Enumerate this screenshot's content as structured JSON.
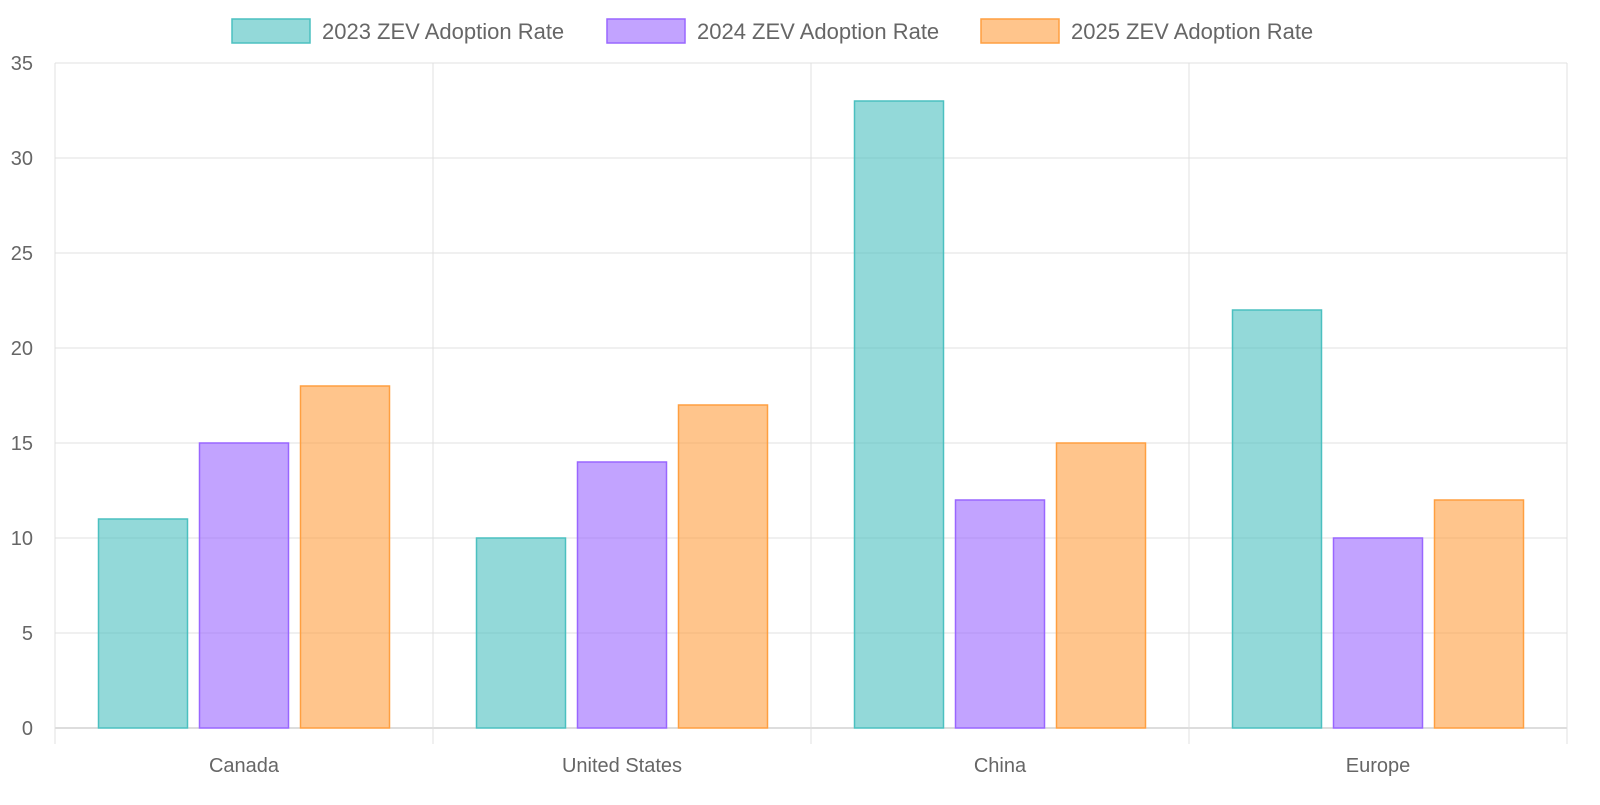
{
  "chart_data": {
    "type": "bar",
    "title": "",
    "xlabel": "",
    "ylabel": "",
    "categories": [
      "Canada",
      "United States",
      "China",
      "Europe"
    ],
    "series": [
      {
        "name": "2023 ZEV Adoption Rate",
        "values": [
          11,
          10,
          33,
          22
        ],
        "color": "#4bc0c0",
        "fill": "rgba(75,192,192,0.6)"
      },
      {
        "name": "2024 ZEV Adoption Rate",
        "values": [
          15,
          14,
          12,
          10
        ],
        "color": "#9966ff",
        "fill": "rgba(153,102,255,0.6)"
      },
      {
        "name": "2025 ZEV Adoption Rate",
        "values": [
          18,
          17,
          15,
          12
        ],
        "color": "#ff9f40",
        "fill": "rgba(255,159,64,0.6)"
      }
    ],
    "ylim": [
      0,
      35
    ],
    "yticks": [
      "0",
      "5",
      "10",
      "15",
      "20",
      "25",
      "30",
      "35"
    ],
    "grid": true,
    "legend": "top-center"
  }
}
